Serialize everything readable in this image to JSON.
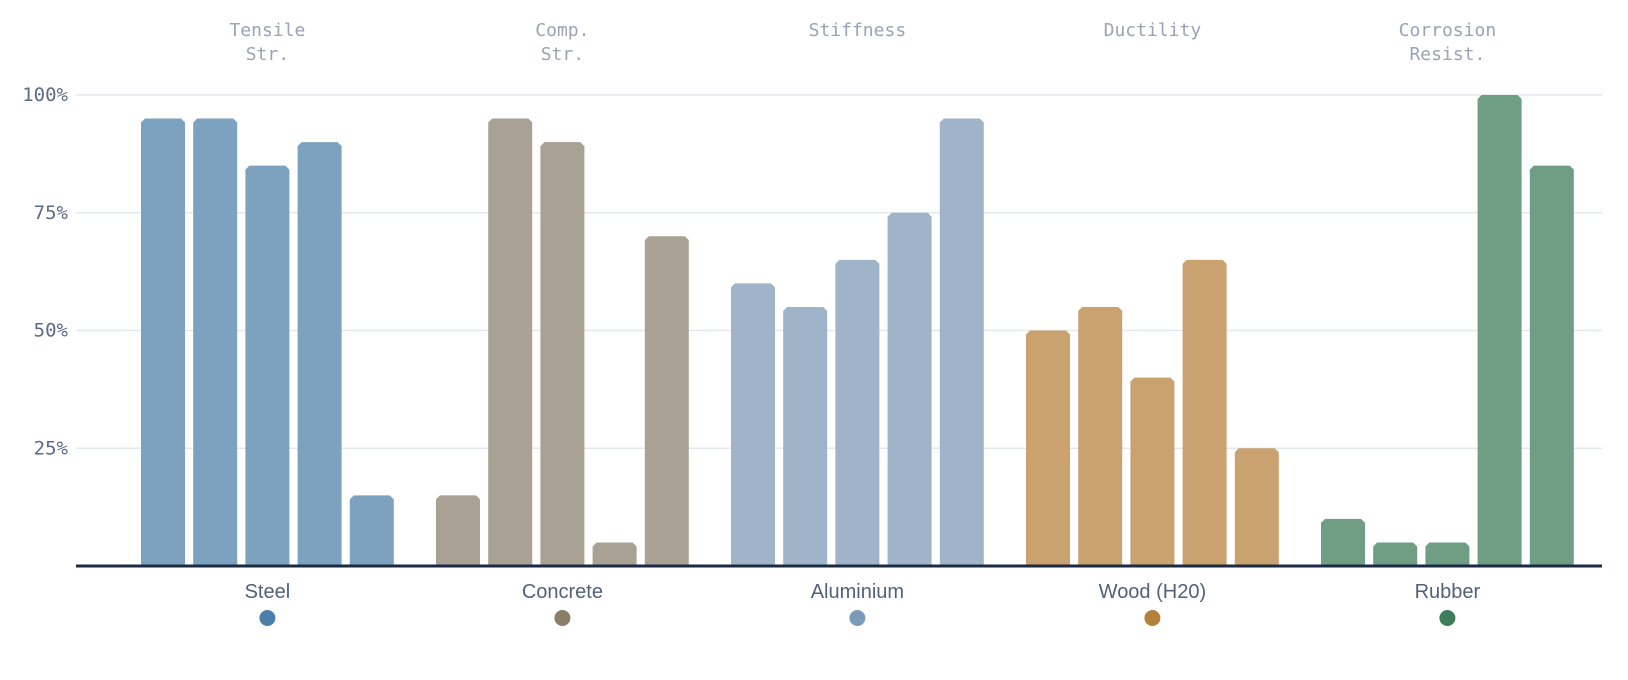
{
  "chart_data": {
    "type": "bar",
    "metrics": [
      {
        "lines": [
          "Tensile",
          "Str."
        ]
      },
      {
        "lines": [
          "Comp.",
          "Str."
        ]
      },
      {
        "lines": [
          "Stiffness"
        ]
      },
      {
        "lines": [
          "Ductility"
        ]
      },
      {
        "lines": [
          "Corrosion",
          "Resist."
        ]
      }
    ],
    "yticks": [
      "25%",
      "50%",
      "75%",
      "100%"
    ],
    "ylim": [
      0,
      100
    ],
    "grid": true,
    "legend_position": "bottom",
    "groups": [
      {
        "name": "Steel",
        "color": "#4a7fa8",
        "bar_color": "#7ca2bf",
        "values": [
          95,
          95,
          85,
          90,
          15
        ]
      },
      {
        "name": "Concrete",
        "color": "#8a7d6a",
        "bar_color": "#a8a194",
        "values": [
          15,
          95,
          90,
          5,
          70
        ]
      },
      {
        "name": "Aluminium",
        "color": "#7b9bb8",
        "bar_color": "#9fb4c9",
        "values": [
          60,
          55,
          65,
          75,
          95
        ]
      },
      {
        "name": "Wood (H20)",
        "color": "#b5803a",
        "bar_color": "#c9a26f",
        "values": [
          50,
          55,
          40,
          65,
          25
        ]
      },
      {
        "name": "Rubber",
        "color": "#3d7d5c",
        "bar_color": "#6f9e84",
        "values": [
          10,
          5,
          5,
          100,
          85
        ]
      }
    ]
  }
}
